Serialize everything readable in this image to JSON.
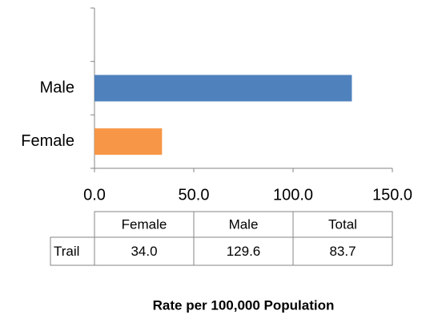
{
  "chart_data": {
    "type": "hbar",
    "categories": [
      "Female",
      "Male",
      null
    ],
    "values": [
      34.0,
      129.6,
      null
    ],
    "colors": [
      "#f79646",
      "#4f81bd",
      null
    ],
    "xlim": [
      0,
      150
    ],
    "xticks": [
      {
        "value": 0,
        "label": "0.0"
      },
      {
        "value": 50,
        "label": "50.0"
      },
      {
        "value": 100,
        "label": "100.0"
      },
      {
        "value": 150,
        "label": "150.0"
      }
    ],
    "x_axis_label": "Rate per 100,000 Population",
    "table": {
      "header": [
        "Female",
        "Male",
        "Total"
      ],
      "rows": [
        [
          "Trail",
          "34.0",
          "129.6",
          "83.7"
        ]
      ]
    }
  }
}
